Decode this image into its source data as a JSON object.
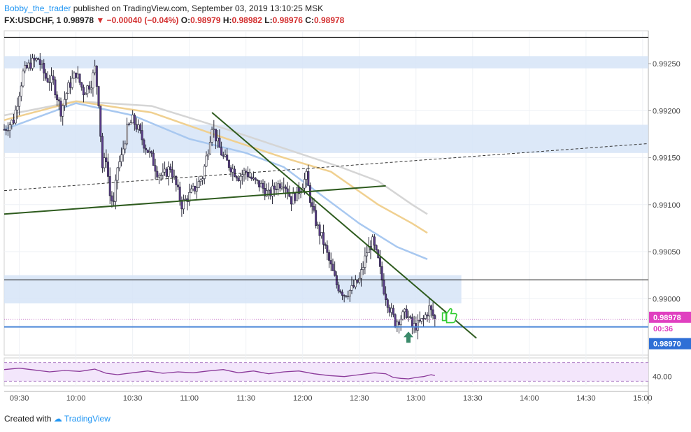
{
  "header": {
    "author": "Bobby_the_trader",
    "published_text": "published on TradingView.com, September 03, 2019 13:10:25 MSK",
    "symbol": "FX:USDCHF, 1",
    "last": "0.98978",
    "change": "−0.00040 (−0.04%)",
    "o_label": "O:",
    "o_value": "0.98979",
    "h_label": "H:",
    "h_value": "0.98982",
    "l_label": "L:",
    "l_value": "0.98976",
    "c_label": "C:",
    "c_value": "0.98978"
  },
  "footer": {
    "created_with": "Created with",
    "brand": "TradingView"
  },
  "chart_data": {
    "type": "candlestick",
    "price_axis": {
      "range": [
        0.9894,
        0.99285
      ],
      "ticks": [
        "0.99250",
        "0.99200",
        "0.99150",
        "0.99100",
        "0.99050",
        "0.99000"
      ]
    },
    "time_axis": {
      "range_minutes": [
        562,
        903
      ],
      "ticks": [
        {
          "label": "09:30",
          "t": 570
        },
        {
          "label": "10:00",
          "t": 600
        },
        {
          "label": "10:30",
          "t": 630
        },
        {
          "label": "11:00",
          "t": 660
        },
        {
          "label": "11:30",
          "t": 690
        },
        {
          "label": "12:00",
          "t": 720
        },
        {
          "label": "12:30",
          "t": 750
        },
        {
          "label": "13:00",
          "t": 780
        },
        {
          "label": "13:30",
          "t": 810
        },
        {
          "label": "14:00",
          "t": 840
        },
        {
          "label": "14:30",
          "t": 870
        },
        {
          "label": "15:00",
          "t": 900
        }
      ]
    },
    "last_price_label": "0.98978",
    "countdown_label": "00:36",
    "blue_level_label": "0.98970",
    "blue_level_price": 0.9897,
    "last_price": 0.98978,
    "rsi_label": "40.00",
    "zones": [
      {
        "from": 0.99245,
        "to": 0.99258
      },
      {
        "from": 0.99155,
        "to": 0.99185
      },
      {
        "from": 0.98995,
        "to": 0.99025
      }
    ],
    "levels": [
      {
        "price": 0.99278,
        "color": "#000000"
      },
      {
        "price": 0.9902,
        "color": "#000000"
      }
    ],
    "trendlines": [
      {
        "t1": 562,
        "p1": 0.9909,
        "t2": 764,
        "p2": 0.9912,
        "style": "solid",
        "color": "#2e5b1e"
      },
      {
        "t1": 672,
        "p1": 0.99198,
        "t2": 812,
        "p2": 0.98958,
        "style": "solid",
        "color": "#2e5b1e"
      },
      {
        "t1": 562,
        "p1": 0.99115,
        "t2": 903,
        "p2": 0.99165,
        "style": "dashed",
        "color": "#333333"
      }
    ],
    "moving_averages": [
      {
        "color": "#d5d5d5",
        "points": [
          [
            562,
            0.99195
          ],
          [
            600,
            0.9921
          ],
          [
            640,
            0.99205
          ],
          [
            680,
            0.9918
          ],
          [
            710,
            0.9916
          ],
          [
            740,
            0.9914
          ],
          [
            760,
            0.99125
          ],
          [
            778,
            0.991
          ],
          [
            786,
            0.9909
          ]
        ]
      },
      {
        "color": "#f0d090",
        "points": [
          [
            562,
            0.9919
          ],
          [
            600,
            0.9921
          ],
          [
            640,
            0.99198
          ],
          [
            680,
            0.9917
          ],
          [
            710,
            0.9915
          ],
          [
            735,
            0.99135
          ],
          [
            760,
            0.991
          ],
          [
            778,
            0.9908
          ],
          [
            786,
            0.9907
          ]
        ]
      },
      {
        "color": "#a8c8f0",
        "points": [
          [
            562,
            0.9918
          ],
          [
            600,
            0.99208
          ],
          [
            630,
            0.99195
          ],
          [
            660,
            0.9917
          ],
          [
            690,
            0.99155
          ],
          [
            710,
            0.9914
          ],
          [
            730,
            0.9911
          ],
          [
            750,
            0.9908
          ],
          [
            770,
            0.99055
          ],
          [
            786,
            0.99042
          ]
        ]
      }
    ],
    "close_path": [
      [
        562,
        0.9918
      ],
      [
        567,
        0.9919
      ],
      [
        572,
        0.9924
      ],
      [
        576,
        0.9925
      ],
      [
        580,
        0.99255
      ],
      [
        584,
        0.99235
      ],
      [
        588,
        0.9923
      ],
      [
        592,
        0.992
      ],
      [
        596,
        0.99225
      ],
      [
        600,
        0.9924
      ],
      [
        604,
        0.9922
      ],
      [
        608,
        0.9923
      ],
      [
        610,
        0.99245
      ],
      [
        612,
        0.9921
      ],
      [
        614,
        0.9914
      ],
      [
        616,
        0.9915
      ],
      [
        618,
        0.9911
      ],
      [
        620,
        0.991
      ],
      [
        622,
        0.9914
      ],
      [
        624,
        0.9915
      ],
      [
        627,
        0.9918
      ],
      [
        630,
        0.9919
      ],
      [
        633,
        0.9918
      ],
      [
        636,
        0.99165
      ],
      [
        640,
        0.9915
      ],
      [
        643,
        0.99135
      ],
      [
        646,
        0.9913
      ],
      [
        650,
        0.9914
      ],
      [
        653,
        0.9912
      ],
      [
        656,
        0.991
      ],
      [
        660,
        0.9911
      ],
      [
        664,
        0.9912
      ],
      [
        667,
        0.9913
      ],
      [
        670,
        0.9916
      ],
      [
        672,
        0.99185
      ],
      [
        675,
        0.99165
      ],
      [
        678,
        0.9915
      ],
      [
        682,
        0.9914
      ],
      [
        686,
        0.9913
      ],
      [
        690,
        0.99135
      ],
      [
        694,
        0.99125
      ],
      [
        698,
        0.9912
      ],
      [
        702,
        0.9911
      ],
      [
        706,
        0.9912
      ],
      [
        710,
        0.99125
      ],
      [
        714,
        0.99105
      ],
      [
        718,
        0.99115
      ],
      [
        722,
        0.9913
      ],
      [
        725,
        0.99095
      ],
      [
        728,
        0.99075
      ],
      [
        731,
        0.9906
      ],
      [
        734,
        0.9904
      ],
      [
        738,
        0.99015
      ],
      [
        742,
        0.99005
      ],
      [
        746,
        0.9901
      ],
      [
        750,
        0.9902
      ],
      [
        754,
        0.9905
      ],
      [
        757,
        0.9906
      ],
      [
        760,
        0.9904
      ],
      [
        763,
        0.9901
      ],
      [
        766,
        0.9899
      ],
      [
        769,
        0.98975
      ],
      [
        772,
        0.9898
      ],
      [
        775,
        0.98985
      ],
      [
        778,
        0.9897
      ],
      [
        781,
        0.98972
      ],
      [
        784,
        0.98978
      ],
      [
        787,
        0.9899
      ],
      [
        790,
        0.98978
      ]
    ],
    "rsi_points": [
      [
        562,
        55
      ],
      [
        570,
        58
      ],
      [
        578,
        54
      ],
      [
        586,
        50
      ],
      [
        594,
        53
      ],
      [
        602,
        51
      ],
      [
        610,
        56
      ],
      [
        616,
        47
      ],
      [
        622,
        44
      ],
      [
        630,
        48
      ],
      [
        638,
        52
      ],
      [
        646,
        47
      ],
      [
        654,
        50
      ],
      [
        662,
        48
      ],
      [
        670,
        52
      ],
      [
        678,
        55
      ],
      [
        686,
        48
      ],
      [
        694,
        52
      ],
      [
        702,
        46
      ],
      [
        710,
        50
      ],
      [
        718,
        52
      ],
      [
        726,
        46
      ],
      [
        734,
        42
      ],
      [
        742,
        40
      ],
      [
        750,
        44
      ],
      [
        758,
        48
      ],
      [
        764,
        46
      ],
      [
        768,
        38
      ],
      [
        772,
        36
      ],
      [
        776,
        35
      ],
      [
        780,
        38
      ],
      [
        784,
        40
      ],
      [
        788,
        44
      ],
      [
        790,
        42
      ]
    ],
    "rsi_band": [
      30,
      70
    ]
  }
}
